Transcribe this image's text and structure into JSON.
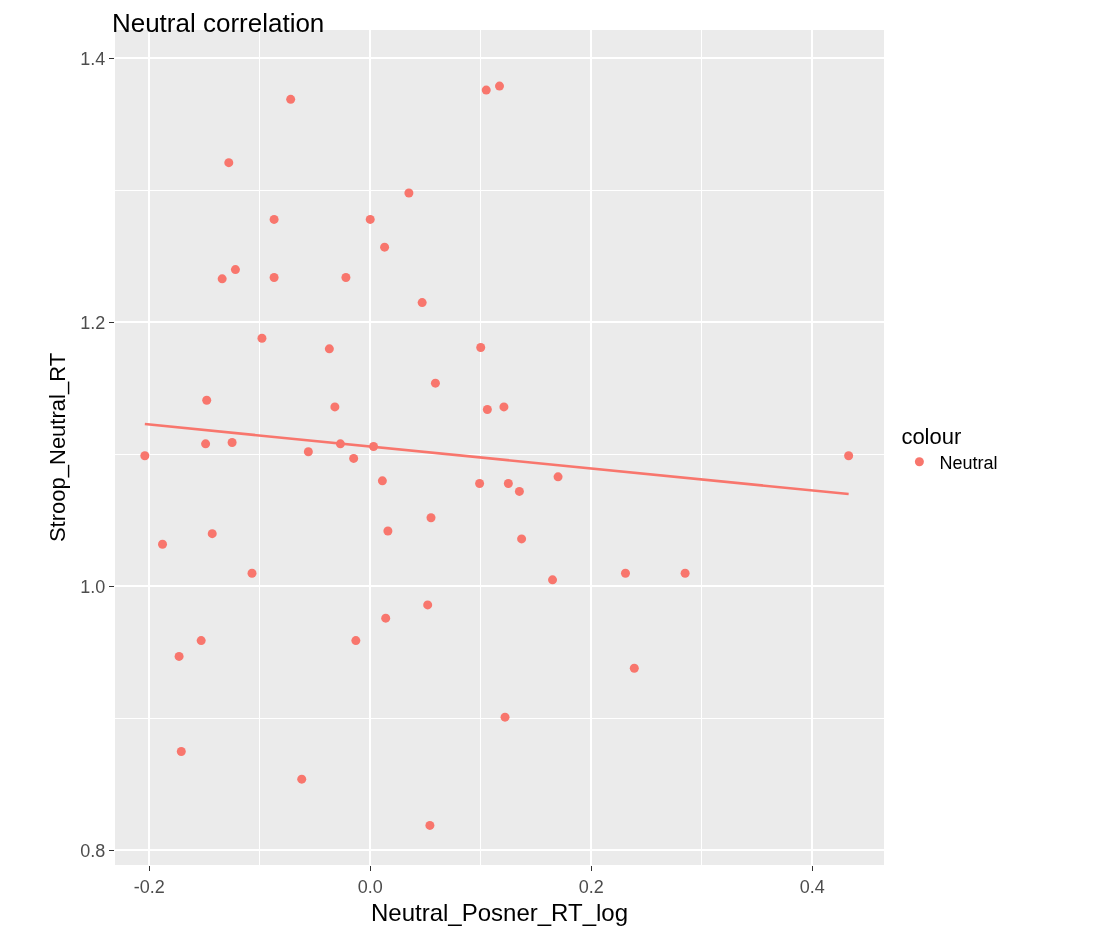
{
  "chart_data": {
    "type": "scatter",
    "title": "Neutral correlation",
    "xlabel": "Neutral_Posner_RT_log",
    "ylabel": "Stroop_Neutral_RT",
    "legend_title": "colour",
    "legend": "right",
    "grid": true,
    "marker": "circle",
    "xlim": [
      -0.231,
      0.465
    ],
    "ylim": [
      0.789,
      1.4215
    ],
    "xticks": [
      -0.2,
      {
        "value": 0,
        "label": "0.0"
      },
      0.2,
      0.4
    ],
    "yticks": [
      0.8,
      {
        "value": 1,
        "label": "1.0"
      },
      1.2,
      1.4
    ],
    "series": [
      {
        "name": "Neutral",
        "color": "#f8766d",
        "x": [
          -0.204,
          -0.188,
          -0.173,
          -0.171,
          -0.153,
          -0.149,
          -0.148,
          -0.143,
          -0.134,
          -0.128,
          -0.125,
          -0.122,
          -0.107,
          -0.098,
          -0.087,
          -0.087,
          -0.072,
          -0.062,
          -0.056,
          -0.037,
          -0.032,
          -0.027,
          -0.022,
          -0.015,
          -0.013,
          0.0,
          0.003,
          0.011,
          0.013,
          0.014,
          0.016,
          0.035,
          0.047,
          0.052,
          0.055,
          0.054,
          0.059,
          0.099,
          0.1,
          0.105,
          0.106,
          0.117,
          0.121,
          0.122,
          0.125,
          0.135,
          0.137,
          0.165,
          0.17,
          0.231,
          0.239,
          0.285,
          0.433
        ],
        "values": [
          1.099,
          1.032,
          0.947,
          0.875,
          0.959,
          1.108,
          1.141,
          1.04,
          1.233,
          1.321,
          1.109,
          1.24,
          1.01,
          1.188,
          1.278,
          1.234,
          1.369,
          0.854,
          1.102,
          1.18,
          1.136,
          1.108,
          1.234,
          1.097,
          0.959,
          1.278,
          1.106,
          1.08,
          1.257,
          0.976,
          1.042,
          1.298,
          1.215,
          0.986,
          1.052,
          0.819,
          1.154,
          1.078,
          1.181,
          1.376,
          1.134,
          1.379,
          1.136,
          0.901,
          1.078,
          1.072,
          1.036,
          1.005,
          1.083,
          1.01,
          0.938,
          1.01,
          1.099
        ]
      },
      {
        "type": "line",
        "color": "#f8766d",
        "line_style": "solid",
        "marker": "none",
        "x": [
          -0.204,
          0.433
        ],
        "values": [
          1.123,
          1.07
        ]
      }
    ]
  }
}
